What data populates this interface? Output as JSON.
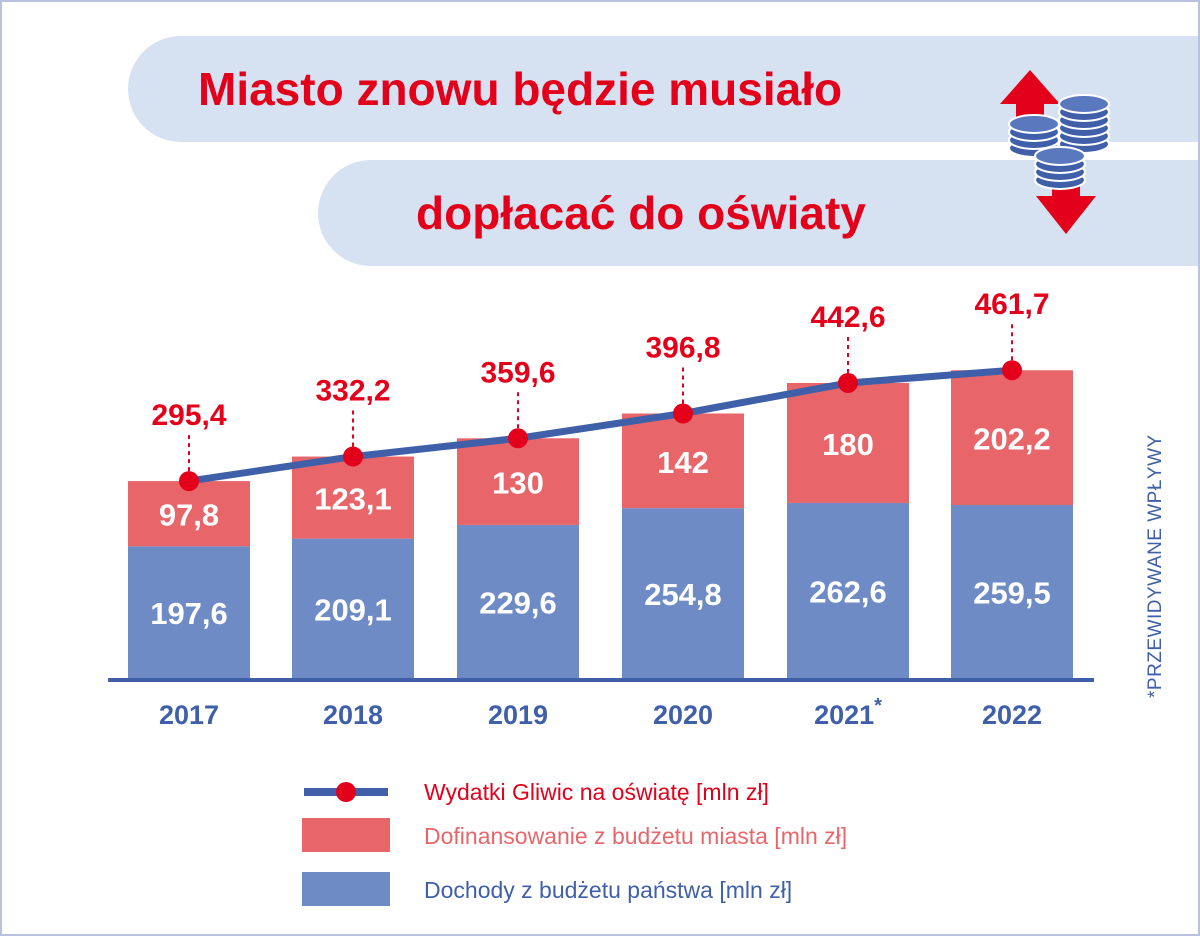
{
  "title": {
    "line1": "Miasto znowu będzie musiało",
    "line2": "dopłacać do oświaty"
  },
  "header_icon": "coins-with-up-down-arrows-icon",
  "footnote": "*PRZEWIDYWANE WPŁYWY",
  "colors": {
    "title_red": "#e3001b",
    "city_bar": "#e8666a",
    "state_bar": "#6f8bc6",
    "line": "#3f5fa8",
    "marker": "#e3001b",
    "axis_text": "#3f5fa8",
    "pill_bg": "#d6e2f1"
  },
  "chart_data": {
    "type": "bar",
    "stacked": true,
    "categories": [
      "2017",
      "2018",
      "2019",
      "2020",
      "2021*",
      "2022"
    ],
    "series": [
      {
        "name": "Dochody z budżetu państwa [mln zł]",
        "kind": "bar",
        "values": [
          197.6,
          209.1,
          229.6,
          254.8,
          262.6,
          259.5
        ],
        "labels": [
          "197,6",
          "209,1",
          "229,6",
          "254,8",
          "262,6",
          "259,5"
        ]
      },
      {
        "name": "Dofinansowanie z budżetu miasta [mln zł]",
        "kind": "bar",
        "values": [
          97.8,
          123.1,
          130,
          142,
          180,
          202.2
        ],
        "labels": [
          "97,8",
          "123,1",
          "130",
          "142",
          "180",
          "202,2"
        ]
      },
      {
        "name": "Wydatki Gliwic na oświatę [mln zł]",
        "kind": "line",
        "values": [
          295.4,
          332.2,
          359.6,
          396.8,
          442.6,
          461.7
        ],
        "labels": [
          "295,4",
          "332,2",
          "359,6",
          "396,8",
          "442,6",
          "461,7"
        ]
      }
    ],
    "ylim": [
      0,
      470
    ],
    "grid": false,
    "legend_position": "bottom"
  }
}
